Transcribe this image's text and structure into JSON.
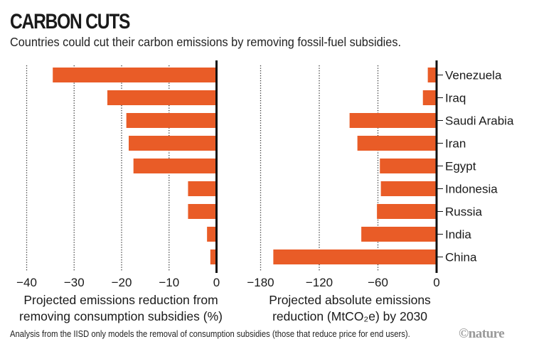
{
  "header": {
    "title": "CARBON CUTS",
    "subtitle": "Countries could cut their carbon emissions by removing fossil-fuel subsidies."
  },
  "footer": {
    "note": "Analysis from the IISD only models the removal of consumption subsidies (those that reduce price for end users).",
    "logo": "©nature"
  },
  "colors": {
    "bar": "#e95c27",
    "axis": "#111111",
    "grid": "#333333"
  },
  "chart_data": [
    {
      "type": "bar",
      "orientation": "horizontal",
      "title": "",
      "xlabel_lines": [
        "Projected emissions reduction from",
        "removing consumption subsidies (%)"
      ],
      "ylabel": "",
      "categories": [
        "Venezuela",
        "Iraq",
        "Saudi Arabia",
        "Iran",
        "Egypt",
        "Indonesia",
        "Russia",
        "India",
        "China"
      ],
      "values": [
        -34.5,
        -23,
        -19,
        -18.5,
        -17.5,
        -6,
        -6,
        -2,
        -1.3
      ],
      "xlim": [
        -40,
        0
      ],
      "xticks": [
        -40,
        -30,
        -20,
        -10,
        0
      ],
      "xtick_labels": [
        "−40",
        "−30",
        "−20",
        "−10",
        "0"
      ],
      "grid": "vertical dotted"
    },
    {
      "type": "bar",
      "orientation": "horizontal",
      "title": "",
      "xlabel_lines": [
        "Projected absolute emissions",
        "reduction (MtCO₂e) by 2030"
      ],
      "ylabel": "",
      "categories": [
        "Venezuela",
        "Iraq",
        "Saudi Arabia",
        "Iran",
        "Egypt",
        "Indonesia",
        "Russia",
        "India",
        "China"
      ],
      "values": [
        -9,
        -14,
        -89,
        -81,
        -58,
        -57,
        -61,
        -77,
        -167
      ],
      "xlim": [
        -180,
        0
      ],
      "xticks": [
        -180,
        -120,
        -60,
        0
      ],
      "xtick_labels": [
        "−180",
        "−120",
        "−60",
        "0"
      ],
      "grid": "vertical dotted",
      "category_labels_side": "right"
    }
  ]
}
